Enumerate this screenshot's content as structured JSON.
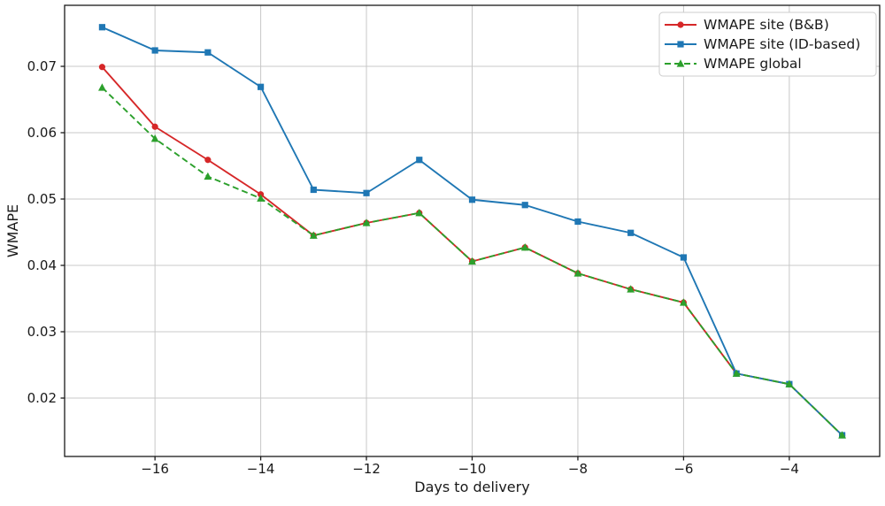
{
  "figure": {
    "background": "#ffffff"
  },
  "chart_data": {
    "type": "line",
    "title": "",
    "xlabel": "Days to delivery",
    "ylabel": "WMAPE",
    "x": [
      -17,
      -16,
      -15,
      -14,
      -13,
      -12,
      -11,
      -10,
      -9,
      -8,
      -7,
      -6,
      -5,
      -4,
      -3
    ],
    "series": [
      {
        "name": "WMAPE site (B&B)",
        "color": "#d62728",
        "marker": "circle",
        "line_style": "solid",
        "values": [
          0.0699,
          0.0609,
          0.0559,
          0.0507,
          0.0445,
          0.0464,
          0.0479,
          0.0406,
          0.0427,
          0.0388,
          0.0364,
          0.0344,
          0.0237,
          0.0221,
          0.0144
        ]
      },
      {
        "name": "WMAPE site (ID-based)",
        "color": "#1f77b4",
        "marker": "square",
        "line_style": "solid",
        "values": [
          0.0759,
          0.0724,
          0.0721,
          0.0669,
          0.0514,
          0.0509,
          0.0559,
          0.0499,
          0.0491,
          0.0466,
          0.0449,
          0.0412,
          0.0237,
          0.0221,
          0.0144
        ]
      },
      {
        "name": "WMAPE global",
        "color": "#2ca02c",
        "marker": "triangle",
        "line_style": "dashed",
        "values": [
          0.0668,
          0.0591,
          0.0534,
          0.0501,
          0.0445,
          0.0464,
          0.0479,
          0.0406,
          0.0427,
          0.0388,
          0.0364,
          0.0344,
          0.0237,
          0.0221,
          0.0144
        ]
      }
    ],
    "xlim": [
      -17.71,
      -2.29
    ],
    "ylim": [
      0.0112,
      0.0792
    ],
    "xticks": [
      -16,
      -14,
      -12,
      -10,
      -8,
      -6,
      -4
    ],
    "xtick_labels": [
      "−16",
      "−14",
      "−12",
      "−10",
      "−8",
      "−6",
      "−4"
    ],
    "yticks": [
      0.02,
      0.03,
      0.04,
      0.05,
      0.06,
      0.07
    ],
    "ytick_labels": [
      "0.02",
      "0.03",
      "0.04",
      "0.05",
      "0.06",
      "0.07"
    ],
    "grid": true,
    "legend_position": "upper right",
    "colors": {
      "grid": "#c8c8c8",
      "spine": "#1a1a1a",
      "text": "#1a1a1a",
      "legend_border": "#cccccc",
      "legend_background": "#ffffff"
    }
  }
}
